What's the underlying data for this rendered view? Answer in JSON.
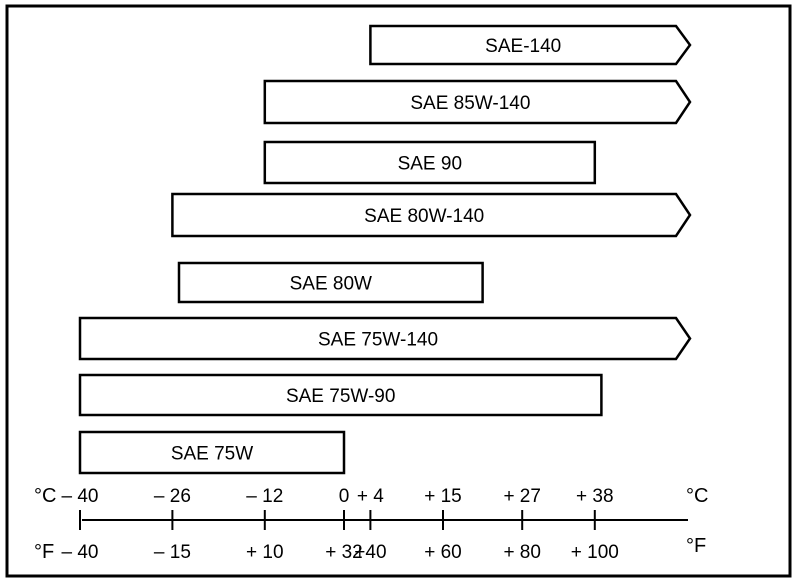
{
  "chart_data": {
    "type": "bar",
    "subtype": "horizontal-range",
    "xlim_c": [
      -40,
      55
    ],
    "ranges": [
      {
        "label": "SAE-140",
        "min_c": 4,
        "max_c": null,
        "open_ended": true
      },
      {
        "label": "SAE 85W-140",
        "min_c": -12,
        "max_c": null,
        "open_ended": true
      },
      {
        "label": "SAE 90",
        "min_c": -12,
        "max_c": 38,
        "open_ended": false
      },
      {
        "label": "SAE 80W-140",
        "min_c": -26,
        "max_c": null,
        "open_ended": true
      },
      {
        "label": "SAE 80W",
        "min_c": -25,
        "max_c": 21,
        "open_ended": false
      },
      {
        "label": "SAE 75W-140",
        "min_c": -40,
        "max_c": null,
        "open_ended": true
      },
      {
        "label": "SAE 75W-90",
        "min_c": -40,
        "max_c": 39,
        "open_ended": false
      },
      {
        "label": "SAE 75W",
        "min_c": -40,
        "max_c": 0,
        "open_ended": false
      }
    ],
    "axis": {
      "celsius_label": "°C",
      "fahrenheit_label": "°F",
      "ticks": [
        {
          "c": -40,
          "c_label": "– 40",
          "f_label": "– 40"
        },
        {
          "c": -26,
          "c_label": "– 26",
          "f_label": "– 15"
        },
        {
          "c": -12,
          "c_label": "– 12",
          "f_label": "+ 10"
        },
        {
          "c": 0,
          "c_label": "0",
          "f_label": "+ 32"
        },
        {
          "c": 4,
          "c_label": "+ 4",
          "f_label": "+40"
        },
        {
          "c": 15,
          "c_label": "+ 15",
          "f_label": "+ 60"
        },
        {
          "c": 27,
          "c_label": "+ 27",
          "f_label": "+ 80"
        },
        {
          "c": 38,
          "c_label": "+ 38",
          "f_label": "+ 100"
        }
      ]
    },
    "colors": {
      "line": "#000000",
      "fill": "#ffffff"
    }
  }
}
